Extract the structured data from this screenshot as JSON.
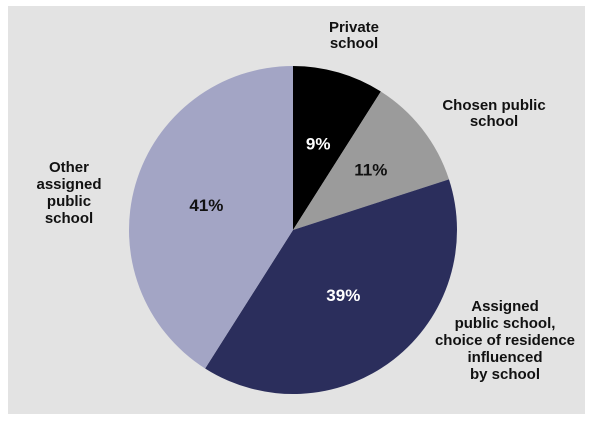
{
  "chart_data": {
    "type": "pie",
    "start_angle_deg": 0,
    "direction": "clockwise",
    "background": "#e3e3e3",
    "slices": [
      {
        "label_lines": [
          "Private",
          "school"
        ],
        "value": 9,
        "value_label": "9%",
        "color": "#000000",
        "text_color": "#ffffff"
      },
      {
        "label_lines": [
          "Chosen public",
          "school"
        ],
        "value": 11,
        "value_label": "11%",
        "color": "#9b9b9b",
        "text_color": "#111111"
      },
      {
        "label_lines": [
          "Assigned",
          "public school,",
          "choice of residence",
          "influenced",
          "by school"
        ],
        "value": 39,
        "value_label": "39%",
        "color": "#2b2e5c",
        "text_color": "#ffffff"
      },
      {
        "label_lines": [
          "Other",
          "assigned",
          "public",
          "school"
        ],
        "value": 41,
        "value_label": "41%",
        "color": "#a3a5c5",
        "text_color": "#111111"
      }
    ]
  }
}
